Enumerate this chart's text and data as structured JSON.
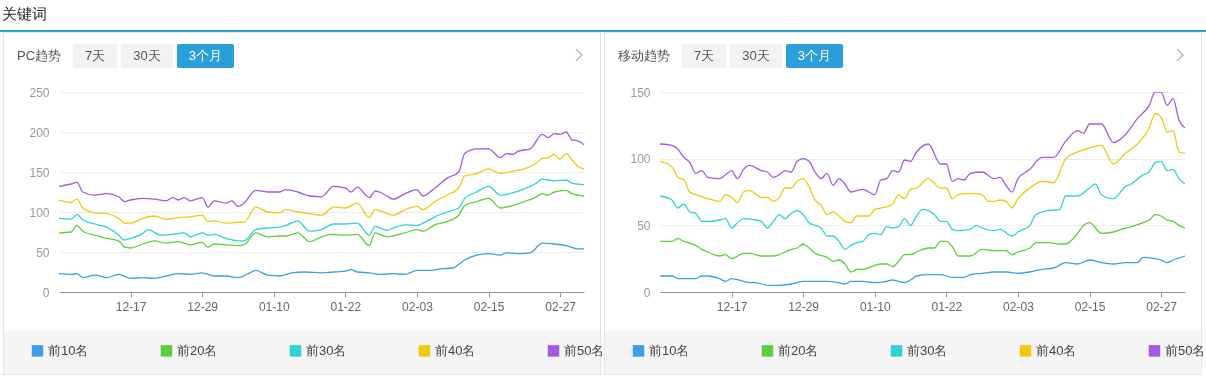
{
  "chart_data": [
    {
      "type": "other",
      "title": "关键词"
    },
    {
      "type": "line",
      "title": "PC趋势",
      "annotations": [
        "7天",
        "30天",
        "3个月"
      ],
      "ylim": [
        0,
        250
      ],
      "yticks": [
        0,
        50,
        100,
        150,
        200,
        250
      ],
      "categories": [
        null,
        null,
        null,
        null,
        null,
        null,
        null,
        null,
        null,
        null,
        null,
        null,
        "12-17",
        null,
        null,
        null,
        null,
        null,
        null,
        null,
        null,
        null,
        null,
        null,
        "12-29",
        null,
        null,
        null,
        null,
        null,
        null,
        null,
        null,
        null,
        null,
        null,
        "01-10",
        null,
        null,
        null,
        null,
        null,
        null,
        null,
        null,
        null,
        null,
        null,
        "01-22",
        null,
        null,
        null,
        null,
        null,
        null,
        null,
        null,
        null,
        null,
        null,
        "02-03",
        null,
        null,
        null,
        null,
        null,
        null,
        null,
        null,
        null,
        null,
        null,
        "02-15",
        null,
        null,
        null,
        null,
        null,
        null,
        null,
        null,
        null,
        null,
        null,
        "02-27",
        null,
        null,
        null,
        null
      ],
      "grid": "y",
      "legend": "bottom",
      "marker": "none",
      "line_style": "solid",
      "series": [
        {
          "name": "前10名",
          "color": "#3ca0e6",
          "values": [
            23,
            null,
            22,
            23,
            18,
            null,
            21,
            null,
            18,
            null,
            22,
            null,
            17,
            null,
            18,
            null,
            17,
            null,
            20,
            null,
            23,
            null,
            22,
            null,
            24,
            null,
            20,
            null,
            20,
            null,
            18,
            null,
            24,
            27,
            null,
            21,
            null,
            20,
            null,
            24,
            null,
            25,
            null,
            null,
            24,
            null,
            25,
            null,
            26,
            28,
            25,
            null,
            24,
            null,
            22,
            null,
            23,
            null,
            22,
            null,
            27,
            null,
            27,
            null,
            29,
            null,
            30,
            null,
            40,
            null,
            46,
            null,
            48,
            null,
            46,
            49,
            null,
            48,
            null,
            49,
            null,
            61,
            null,
            60,
            null,
            58,
            null,
            54,
            54
          ]
        },
        {
          "name": "前20名",
          "color": "#5ccf3f",
          "values": [
            74,
            null,
            75,
            83,
            76,
            null,
            71,
            null,
            67,
            null,
            64,
            56,
            55,
            null,
            60,
            null,
            64,
            null,
            61,
            null,
            63,
            null,
            59,
            null,
            62,
            56,
            60,
            null,
            59,
            null,
            58,
            59,
            null,
            74,
            null,
            69,
            null,
            70,
            70,
            null,
            74,
            null,
            63,
            null,
            69,
            null,
            72,
            null,
            71,
            null,
            72,
            null,
            58,
            74,
            null,
            69,
            70,
            null,
            74,
            null,
            78,
            76,
            null,
            84,
            null,
            88,
            null,
            96,
            108,
            null,
            113,
            null,
            117,
            null,
            105,
            null,
            108,
            null,
            113,
            null,
            119,
            123,
            121,
            125,
            null,
            127,
            123,
            null,
            120
          ]
        },
        {
          "name": "前30名",
          "color": "#2fd3d6",
          "values": [
            92,
            null,
            91,
            97,
            90,
            null,
            85,
            null,
            81,
            null,
            71,
            65,
            67,
            null,
            73,
            78,
            null,
            71,
            null,
            72,
            null,
            74,
            69,
            null,
            74,
            71,
            72,
            null,
            67,
            null,
            64,
            64,
            null,
            78,
            null,
            80,
            null,
            81,
            83,
            null,
            89,
            null,
            76,
            null,
            78,
            null,
            85,
            null,
            85,
            null,
            86,
            null,
            71,
            82,
            null,
            77,
            80,
            null,
            84,
            null,
            83,
            86,
            null,
            94,
            null,
            100,
            null,
            105,
            117,
            null,
            125,
            null,
            132,
            null,
            121,
            null,
            124,
            null,
            129,
            null,
            136,
            141,
            null,
            139,
            null,
            140,
            136,
            null,
            134
          ]
        },
        {
          "name": "前40名",
          "color": "#f2c80f",
          "values": [
            115,
            null,
            112,
            116,
            105,
            null,
            99,
            null,
            98,
            null,
            92,
            86,
            86,
            null,
            92,
            null,
            95,
            null,
            91,
            null,
            93,
            null,
            94,
            null,
            96,
            88,
            89,
            null,
            86,
            null,
            87,
            87,
            null,
            106,
            null,
            100,
            null,
            99,
            103,
            null,
            100,
            null,
            98,
            null,
            96,
            null,
            106,
            null,
            105,
            null,
            111,
            null,
            93,
            103,
            null,
            98,
            96,
            null,
            103,
            null,
            107,
            103,
            null,
            113,
            null,
            121,
            null,
            130,
            145,
            null,
            148,
            null,
            154,
            null,
            148,
            null,
            151,
            null,
            154,
            null,
            161,
            167,
            168,
            172,
            166,
            173,
            165,
            157,
            154
          ]
        },
        {
          "name": "前50名",
          "color": "#a259e4",
          "values": [
            132,
            null,
            135,
            137,
            125,
            null,
            121,
            null,
            123,
            null,
            119,
            113,
            115,
            null,
            117,
            null,
            116,
            null,
            114,
            118,
            115,
            118,
            114,
            null,
            118,
            106,
            114,
            null,
            111,
            114,
            107,
            111,
            null,
            127,
            null,
            125,
            null,
            125,
            128,
            null,
            125,
            null,
            120,
            null,
            119,
            null,
            132,
            null,
            130,
            125,
            131,
            null,
            118,
            126,
            null,
            120,
            116,
            null,
            123,
            null,
            128,
            120,
            null,
            130,
            null,
            142,
            null,
            150,
            173,
            null,
            179,
            null,
            179,
            null,
            168,
            173,
            172,
            176,
            null,
            179,
            null,
            197,
            193,
            198,
            197,
            200,
            190,
            189,
            184
          ]
        }
      ]
    },
    {
      "type": "line",
      "title": "移动趋势",
      "annotations": [
        "7天",
        "30天",
        "3个月"
      ],
      "ylim": [
        0,
        150
      ],
      "yticks": [
        0,
        50,
        100,
        150
      ],
      "categories": [
        null,
        null,
        null,
        null,
        null,
        null,
        null,
        null,
        null,
        null,
        null,
        null,
        "12-17",
        null,
        null,
        null,
        null,
        null,
        null,
        null,
        null,
        null,
        null,
        null,
        "12-29",
        null,
        null,
        null,
        null,
        null,
        null,
        null,
        null,
        null,
        null,
        null,
        "01-10",
        null,
        null,
        null,
        null,
        null,
        null,
        null,
        null,
        null,
        null,
        null,
        "01-22",
        null,
        null,
        null,
        null,
        null,
        null,
        null,
        null,
        null,
        null,
        null,
        "02-03",
        null,
        null,
        null,
        null,
        null,
        null,
        null,
        null,
        null,
        null,
        null,
        "02-15",
        null,
        null,
        null,
        null,
        null,
        null,
        null,
        null,
        null,
        null,
        null,
        "02-27",
        null,
        null,
        null,
        null
      ],
      "grid": "y",
      "legend": "bottom",
      "marker": "none",
      "line_style": "solid",
      "series": [
        {
          "name": "前10名",
          "color": "#3ca0e6",
          "values": [
            12,
            null,
            12,
            10,
            null,
            10,
            10,
            12,
            12,
            null,
            10,
            8,
            10,
            null,
            8,
            7,
            7,
            null,
            5,
            null,
            5,
            null,
            6,
            null,
            8,
            null,
            8,
            null,
            8,
            null,
            7,
            6,
            8,
            null,
            8,
            null,
            7,
            null,
            8,
            9,
            8,
            7,
            9,
            12,
            null,
            13,
            null,
            13,
            null,
            11,
            null,
            11,
            13,
            null,
            14,
            null,
            15,
            null,
            15,
            null,
            14,
            null,
            15,
            null,
            17,
            null,
            18,
            null,
            22,
            null,
            21,
            null,
            24,
            null,
            22,
            null,
            21,
            null,
            22,
            null,
            22,
            26,
            null,
            25,
            24,
            22,
            24,
            null,
            27
          ]
        },
        {
          "name": "前20名",
          "color": "#5ccf3f",
          "values": [
            38,
            null,
            38,
            40,
            38,
            null,
            35,
            32,
            30,
            null,
            27,
            28,
            25,
            null,
            29,
            29,
            null,
            27,
            27,
            27,
            null,
            30,
            32,
            33,
            36,
            33,
            29,
            null,
            26,
            23,
            24,
            21,
            15,
            17,
            17,
            null,
            20,
            21,
            21,
            19,
            23,
            28,
            28,
            30,
            null,
            33,
            33,
            38,
            38,
            34,
            27,
            null,
            27,
            null,
            32,
            null,
            31,
            null,
            31,
            28,
            30,
            null,
            33,
            37,
            null,
            37,
            null,
            36,
            36,
            null,
            44,
            50,
            52,
            null,
            44,
            null,
            45,
            null,
            48,
            49,
            null,
            52,
            54,
            58,
            57,
            54,
            53,
            50,
            48
          ]
        },
        {
          "name": "前30名",
          "color": "#2fd3d6",
          "values": [
            72,
            null,
            69,
            63,
            66,
            60,
            59,
            53,
            53,
            null,
            54,
            55,
            48,
            52,
            55,
            null,
            54,
            53,
            48,
            53,
            58,
            55,
            59,
            61,
            58,
            52,
            50,
            48,
            42,
            42,
            38,
            32,
            35,
            37,
            38,
            43,
            44,
            43,
            49,
            48,
            49,
            55,
            50,
            57,
            62,
            null,
            58,
            53,
            53,
            47,
            46,
            null,
            47,
            50,
            48,
            null,
            46,
            47,
            null,
            42,
            45,
            null,
            50,
            58,
            null,
            61,
            null,
            62,
            72,
            null,
            72,
            null,
            78,
            81,
            73,
            null,
            70,
            null,
            79,
            81,
            null,
            88,
            90,
            97,
            98,
            91,
            92,
            85,
            81
          ]
        },
        {
          "name": "前40名",
          "color": "#f2c80f",
          "values": [
            98,
            null,
            94,
            86,
            84,
            75,
            73,
            null,
            70,
            null,
            68,
            73,
            71,
            67,
            75,
            76,
            null,
            71,
            71,
            68,
            71,
            78,
            78,
            83,
            85,
            79,
            69,
            65,
            58,
            60,
            57,
            53,
            52,
            57,
            57,
            57,
            62,
            63,
            64,
            66,
            73,
            70,
            77,
            78,
            null,
            85,
            null,
            78,
            78,
            70,
            73,
            null,
            74,
            null,
            73,
            68,
            68,
            69,
            68,
            63,
            70,
            null,
            78,
            null,
            83,
            null,
            82,
            null,
            100,
            null,
            105,
            null,
            108,
            null,
            110,
            null,
            96,
            null,
            104,
            null,
            111,
            null,
            123,
            134,
            131,
            120,
            121,
            105,
            104
          ]
        },
        {
          "name": "前50名",
          "color": "#a259e4",
          "values": [
            111,
            null,
            110,
            107,
            101,
            97,
            89,
            91,
            86,
            null,
            85,
            88,
            91,
            85,
            92,
            95,
            null,
            91,
            90,
            86,
            88,
            91,
            90,
            98,
            100,
            98,
            90,
            85,
            89,
            80,
            85,
            81,
            75,
            null,
            77,
            null,
            73,
            84,
            85,
            91,
            90,
            99,
            98,
            105,
            null,
            111,
            null,
            96,
            96,
            83,
            85,
            84,
            89,
            null,
            90,
            null,
            85,
            86,
            80,
            75,
            85,
            null,
            92,
            null,
            101,
            null,
            101,
            null,
            113,
            null,
            121,
            119,
            126,
            null,
            126,
            null,
            112,
            null,
            118,
            null,
            130,
            null,
            140,
            150,
            150,
            140,
            145,
            129,
            123
          ]
        }
      ]
    }
  ]
}
